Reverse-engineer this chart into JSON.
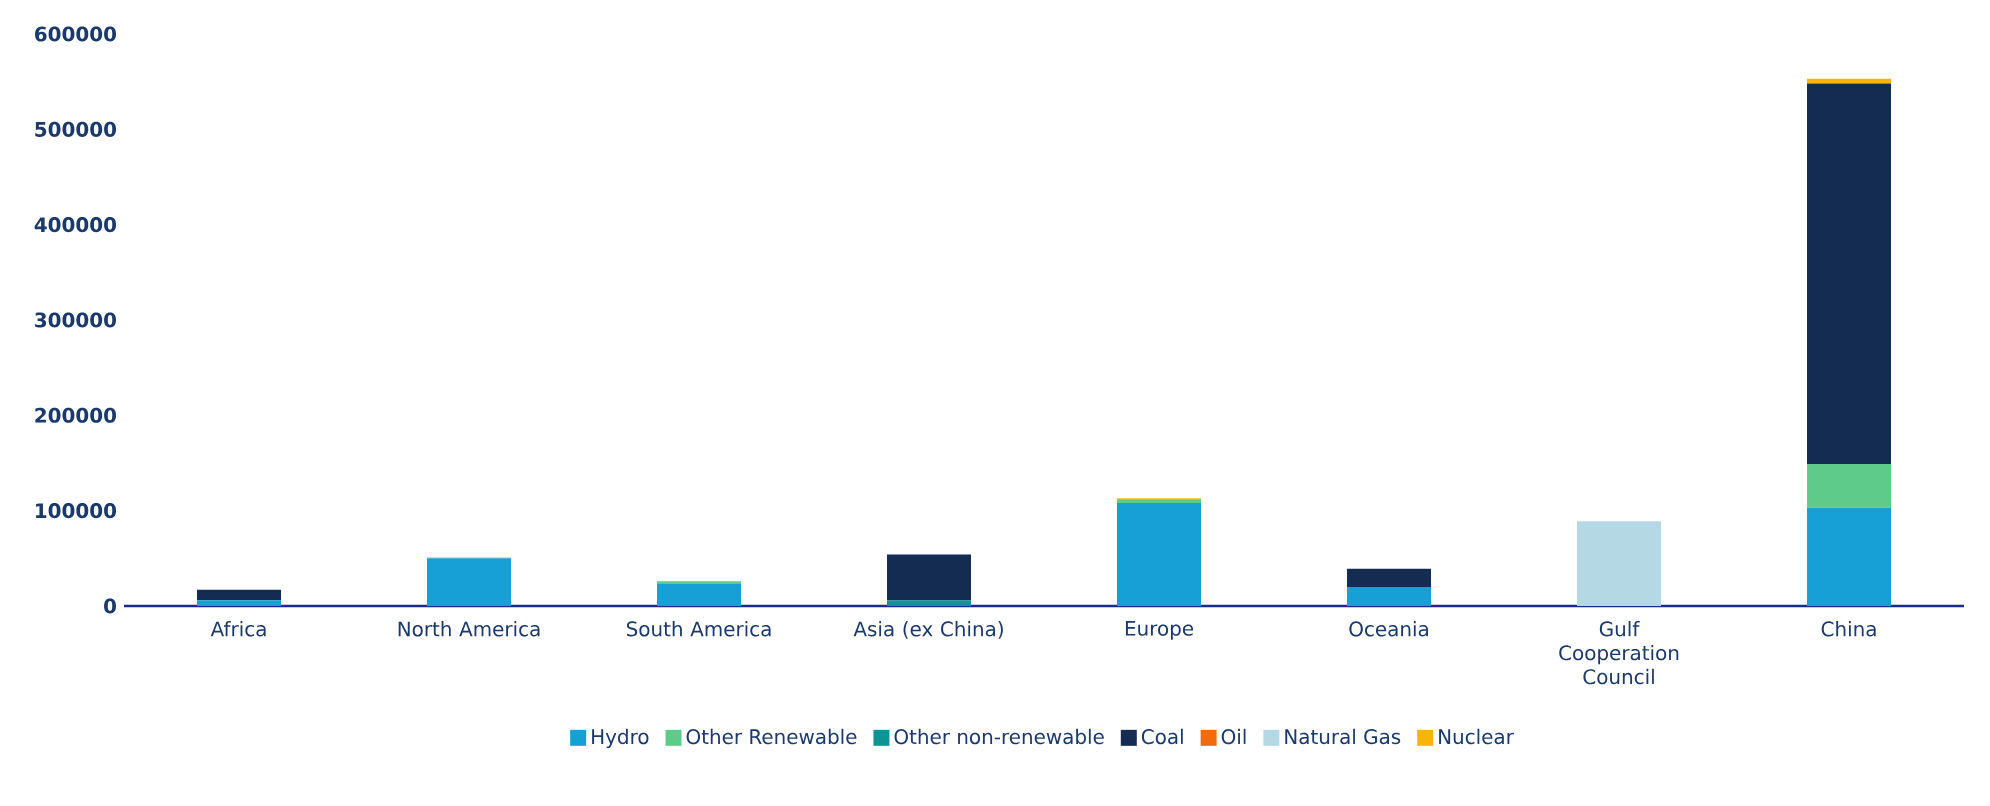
{
  "chart_data": {
    "type": "bar",
    "stacked": true,
    "legend": "bottom",
    "categories": [
      "Africa",
      "North America",
      "South America",
      "Asia (ex China)",
      "Europe",
      "Oceania",
      "Gulf Cooperation Council",
      "China"
    ],
    "series": [
      {
        "name": "Hydro",
        "color": "#16a0d5",
        "values": [
          6000,
          50000,
          23000,
          0,
          108000,
          20000,
          0,
          103000
        ]
      },
      {
        "name": "Other Renewable",
        "color": "#5ecb8a",
        "values": [
          0,
          0,
          3000,
          0,
          4000,
          0,
          0,
          46000
        ]
      },
      {
        "name": "Other non-renewable",
        "color": "#0f9394",
        "values": [
          0,
          0,
          0,
          6000,
          0,
          0,
          0,
          0
        ]
      },
      {
        "name": "Coal",
        "color": "#142b52",
        "values": [
          11000,
          0,
          0,
          48000,
          0,
          19000,
          0,
          399000
        ]
      },
      {
        "name": "Oil",
        "color": "#f26b0f",
        "values": [
          0,
          0,
          0,
          0,
          0,
          0,
          0,
          0
        ]
      },
      {
        "name": "Natural Gas",
        "color": "#b4d9e4",
        "values": [
          0,
          0,
          null,
          0,
          null,
          0,
          89000,
          0
        ]
      },
      {
        "name": "Nuclear",
        "color": "#f9b40a",
        "values": [
          0,
          1000,
          0,
          0,
          1000,
          0,
          0,
          5000
        ]
      }
    ],
    "ylim": [
      0,
      600000
    ],
    "yticks": [
      0,
      100000,
      200000,
      300000,
      400000,
      500000,
      600000
    ]
  }
}
